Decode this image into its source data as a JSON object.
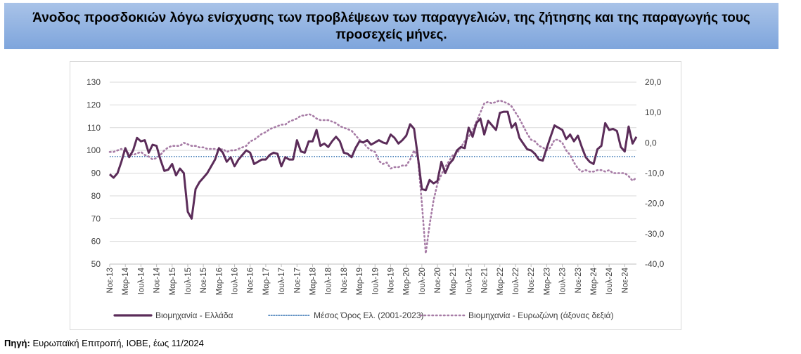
{
  "header": {
    "title": "Άνοδος προσδοκιών λόγω ενίσχυσης των προβλέψεων των παραγγελιών, της ζήτησης και της παραγωγής τους προσεχείς μήνες."
  },
  "footer": {
    "source_label": "Πηγή:",
    "source_text": " Ευρωπαϊκή Επιτροπή, ΙΟΒΕ, έως 11/2024"
  },
  "colors": {
    "title_background": "#8fb0e0",
    "greece_series": "#5b2c59",
    "average_line": "#2f6fb0",
    "eurozone_series": "#a77ca6"
  },
  "chart_data": {
    "type": "line",
    "x_ticks": [
      "Νοε-13",
      "Μαρ-14",
      "Ιουλ-14",
      "Νοε-14",
      "Μαρ-15",
      "Ιουλ-15",
      "Νοε-15",
      "Μαρ-16",
      "Ιουλ-16",
      "Νοε-16",
      "Μαρ-17",
      "Ιουλ-17",
      "Νοε-17",
      "Μαρ-18",
      "Ιουλ-18",
      "Νοε-18",
      "Μαρ-19",
      "Ιουλ-19",
      "Νοε-19",
      "Μαρ-20",
      "Ιουλ-20",
      "Νοε-20",
      "Μαρ-21",
      "Ιουλ-21",
      "Νοε-21",
      "Μαρ-22",
      "Ιουλ-22",
      "Νοε-22",
      "Μαρ-23",
      "Ιουλ-23",
      "Νοε-23",
      "Μαρ-24",
      "Ιουλ-24",
      "Νοε-24"
    ],
    "y_left": {
      "min": 50,
      "max": 130,
      "step": 10,
      "ticks": [
        "50",
        "60",
        "70",
        "80",
        "90",
        "100",
        "110",
        "120",
        "130"
      ]
    },
    "y_right": {
      "min": -40,
      "max": 20,
      "step": 10,
      "ticks": [
        "-40,0",
        "-30,0",
        "-20,0",
        "-10,0",
        "0,0",
        "10,0",
        "20,0"
      ]
    },
    "grid": "horizontal",
    "legend_position": "bottom",
    "series": [
      {
        "name": "Βιομηχανία  - Ελλάδα",
        "axis": "left",
        "style": "solid",
        "color": "#5b2c59",
        "values": [
          89.5,
          88.0,
          90.0,
          95.0,
          101.0,
          97.0,
          100.0,
          105.5,
          104.0,
          104.5,
          99.0,
          102.5,
          102.0,
          96.0,
          91.0,
          91.5,
          94.0,
          89.0,
          92.0,
          90.0,
          73.0,
          70.0,
          83.0,
          86.0,
          88.0,
          90.0,
          93.0,
          96.0,
          101.0,
          99.0,
          95.0,
          97.0,
          93.0,
          96.0,
          98.0,
          100.0,
          99.0,
          94.0,
          95.0,
          96.0,
          96.0,
          98.0,
          99.0,
          98.5,
          93.0,
          97.0,
          96.0,
          96.0,
          104.5,
          99.5,
          99.0,
          104.0,
          104.0,
          109.0,
          102.0,
          103.0,
          101.5,
          104.0,
          106.0,
          104.0,
          99.0,
          98.5,
          97.0,
          101.0,
          104.0,
          103.5,
          104.5,
          102.5,
          103.5,
          104.5,
          103.5,
          103.0,
          107.0,
          105.5,
          103.0,
          104.5,
          106.5,
          111.5,
          109.5,
          97.0,
          83.0,
          82.5,
          87.0,
          85.5,
          86.5,
          95.0,
          90.0,
          94.0,
          96.0,
          100.0,
          101.5,
          101.0,
          110.0,
          106.0,
          112.0,
          114.0,
          107.0,
          113.0,
          111.0,
          109.0,
          116.5,
          117.0,
          117.0,
          110.0,
          112.0,
          105.5,
          103.0,
          100.5,
          100.0,
          98.5,
          96.0,
          95.5,
          101.0,
          106.0,
          111.0,
          110.0,
          109.0,
          105.0,
          107.0,
          104.0,
          106.5,
          101.5,
          97.0,
          95.0,
          94.0,
          100.5,
          102.0,
          112.0,
          109.0,
          109.5,
          108.5,
          101.5,
          99.5,
          110.5,
          103.0,
          106.0
        ]
      },
      {
        "name": "Μέσος Όρος Ελ. (2001-2023)",
        "axis": "left",
        "style": "dotted",
        "color": "#2f6fb0",
        "constant": 97.3
      },
      {
        "name": "Βιομηχανία - Ευρωζώνη (άξονας δεξιά)",
        "axis": "right",
        "style": "dotted",
        "color": "#a77ca6",
        "values": [
          -3.0,
          -3.0,
          -2.5,
          -2.0,
          -3.0,
          -3.5,
          -4.0,
          -3.5,
          -3.0,
          -4.0,
          -4.5,
          -5.5,
          -5.0,
          -4.0,
          -2.5,
          -1.5,
          -1.0,
          -1.0,
          -1.0,
          0.0,
          -0.5,
          -1.0,
          -1.0,
          -1.5,
          -1.5,
          -2.0,
          -2.0,
          -2.0,
          -2.5,
          -2.0,
          -3.0,
          -2.5,
          -2.5,
          -2.0,
          -1.5,
          -1.0,
          0.5,
          1.0,
          2.0,
          3.0,
          3.5,
          4.5,
          5.0,
          5.5,
          6.0,
          6.0,
          7.0,
          7.5,
          8.0,
          9.0,
          9.0,
          9.5,
          9.0,
          8.0,
          7.5,
          7.5,
          7.5,
          7.0,
          6.5,
          5.5,
          5.0,
          4.5,
          4.0,
          2.5,
          1.0,
          0.0,
          -1.5,
          -2.5,
          -3.0,
          -6.0,
          -7.0,
          -6.5,
          -8.5,
          -8.0,
          -8.0,
          -7.5,
          -7.5,
          -5.5,
          -2.5,
          -5.0,
          -20.0,
          -36.5,
          -27.0,
          -19.0,
          -13.5,
          -10.5,
          -8.0,
          -6.0,
          -4.0,
          -3.5,
          -1.5,
          0.5,
          2.0,
          4.0,
          7.0,
          10.0,
          13.0,
          13.5,
          13.0,
          13.5,
          14.0,
          13.5,
          13.0,
          12.0,
          10.0,
          8.0,
          5.5,
          3.0,
          1.0,
          0.5,
          -1.0,
          -1.5,
          -2.5,
          -1.5,
          1.0,
          1.0,
          0.0,
          -2.5,
          -4.0,
          -6.5,
          -8.5,
          -9.5,
          -9.0,
          -9.5,
          -9.5,
          -9.0,
          -9.0,
          -9.5,
          -9.0,
          -10.0,
          -10.0,
          -10.0,
          -10.0,
          -11.0,
          -12.5,
          -11.5
        ]
      }
    ]
  }
}
